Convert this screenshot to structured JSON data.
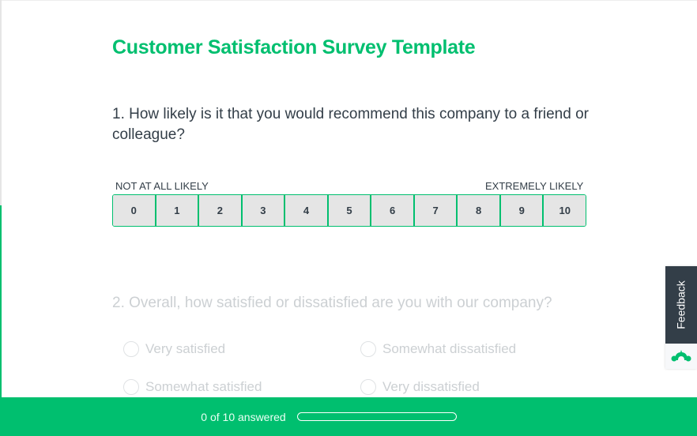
{
  "survey": {
    "title": "Customer Satisfaction Survey Template"
  },
  "q1": {
    "text": "1. How likely is it that you would recommend this company to a friend or colleague?",
    "low_label": "NOT AT ALL LIKELY",
    "high_label": "EXTREMELY LIKELY",
    "scale": [
      "0",
      "1",
      "2",
      "3",
      "4",
      "5",
      "6",
      "7",
      "8",
      "9",
      "10"
    ]
  },
  "q2": {
    "text": "2. Overall, how satisfied or dissatisfied are you with our company?",
    "options": [
      "Very satisfied",
      "Somewhat dissatisfied",
      "Somewhat satisfied",
      "Very dissatisfied"
    ]
  },
  "footer": {
    "progress_text": "0 of 10 answered",
    "progress_percent": 0
  },
  "feedback": {
    "label": "Feedback",
    "icon": "surveymonkey-logo-icon"
  },
  "colors": {
    "accent": "#00bf6f",
    "dark": "#333e48"
  }
}
